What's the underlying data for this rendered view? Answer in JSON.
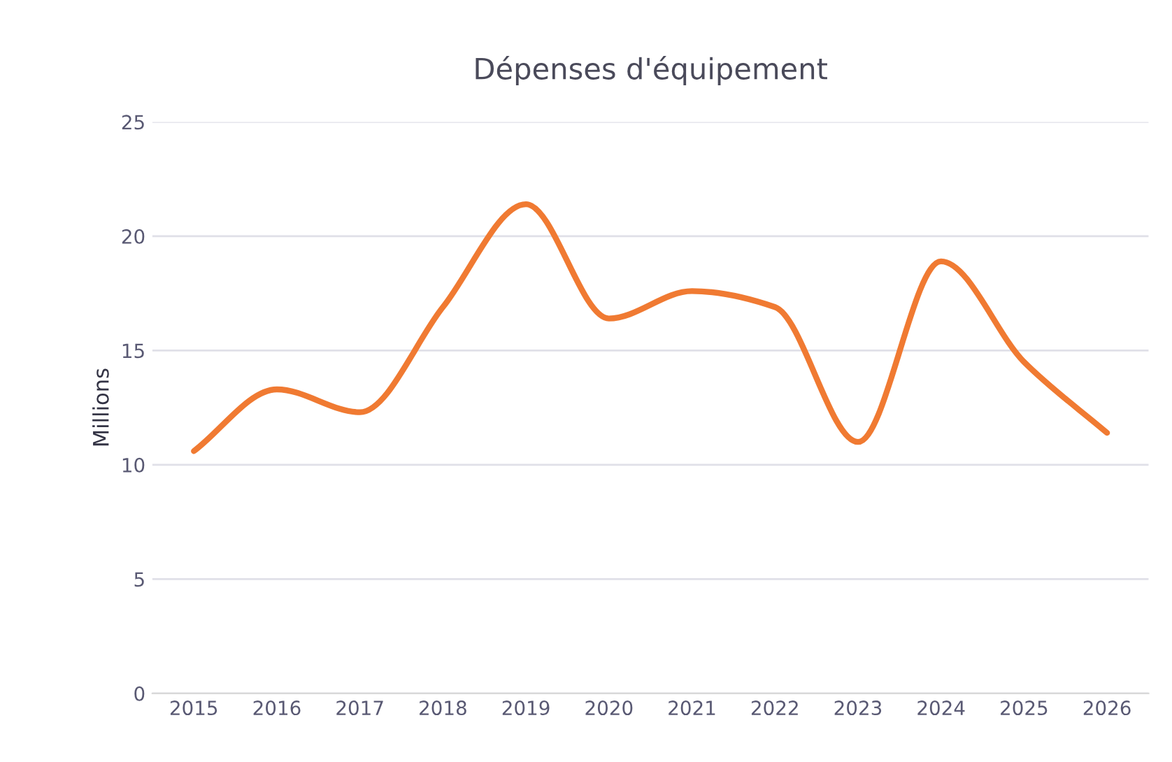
{
  "chart_data": {
    "type": "line",
    "title": "Dépenses d'équipement",
    "ylabel": "Millions",
    "categories": [
      "2015",
      "2016",
      "2017",
      "2018",
      "2019",
      "2020",
      "2021",
      "2022",
      "2023",
      "2024",
      "2025",
      "2026"
    ],
    "series": [
      {
        "color": "#f07a32",
        "values": [
          10.6,
          13.3,
          12.3,
          16.9,
          21.4,
          16.4,
          17.6,
          16.9,
          11.0,
          18.9,
          14.5,
          11.4
        ]
      }
    ],
    "ylim": [
      0,
      25
    ],
    "yticks": [
      0,
      5,
      10,
      15,
      20,
      25
    ],
    "grid": "y",
    "marker": "none",
    "line_style": "solid"
  }
}
